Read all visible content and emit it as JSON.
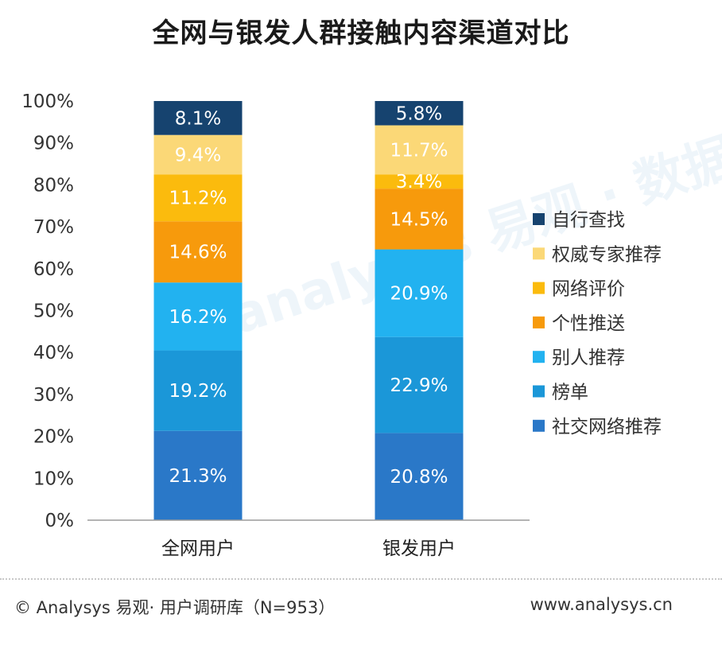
{
  "title": "全网与银发人群接触内容渠道对比",
  "watermark": "analysys 易观 · 数据 · 要的 · 据分",
  "footer": {
    "source": "© Analysys 易观· 用户调研库（N=953）",
    "website": "www.analysys.cn"
  },
  "chart_data": {
    "type": "bar",
    "stacked": true,
    "title": "全网与银发人群接触内容渠道对比",
    "xlabel": "",
    "ylabel": "",
    "ylim": [
      0,
      100
    ],
    "yticks": [
      "0%",
      "10%",
      "20%",
      "30%",
      "40%",
      "50%",
      "60%",
      "70%",
      "80%",
      "90%",
      "100%"
    ],
    "categories": [
      "全网用户",
      "银发用户"
    ],
    "legend_position": "right",
    "series": [
      {
        "name": "社交网络推荐",
        "values": [
          21.3,
          20.8
        ],
        "color": "#2a78c8",
        "label_color": "#ffffff"
      },
      {
        "name": "榜单",
        "values": [
          19.2,
          22.9
        ],
        "color": "#1b97d8",
        "label_color": "#ffffff"
      },
      {
        "name": "别人推荐",
        "values": [
          16.2,
          20.9
        ],
        "color": "#22b2f0",
        "label_color": "#ffffff"
      },
      {
        "name": "个性推送",
        "values": [
          14.6,
          14.5
        ],
        "color": "#f79a0c",
        "label_color": "#ffffff"
      },
      {
        "name": "网络评价",
        "values": [
          11.2,
          3.4
        ],
        "color": "#fbbb0d",
        "label_color": "#ffffff"
      },
      {
        "name": "权威专家推荐",
        "values": [
          9.4,
          11.7
        ],
        "color": "#fbd877",
        "label_color": "#ffffff"
      },
      {
        "name": "自行查找",
        "values": [
          8.1,
          5.8
        ],
        "color": "#16436f",
        "label_color": "#ffffff"
      }
    ],
    "data_labels": [
      [
        "21.3%",
        "20.8%"
      ],
      [
        "19.2%",
        "22.9%"
      ],
      [
        "16.2%",
        "20.9%"
      ],
      [
        "14.6%",
        "14.5%"
      ],
      [
        "11.2%",
        "3.4%"
      ],
      [
        "9.4%",
        "11.7%"
      ],
      [
        "8.1%",
        "5.8%"
      ]
    ]
  }
}
